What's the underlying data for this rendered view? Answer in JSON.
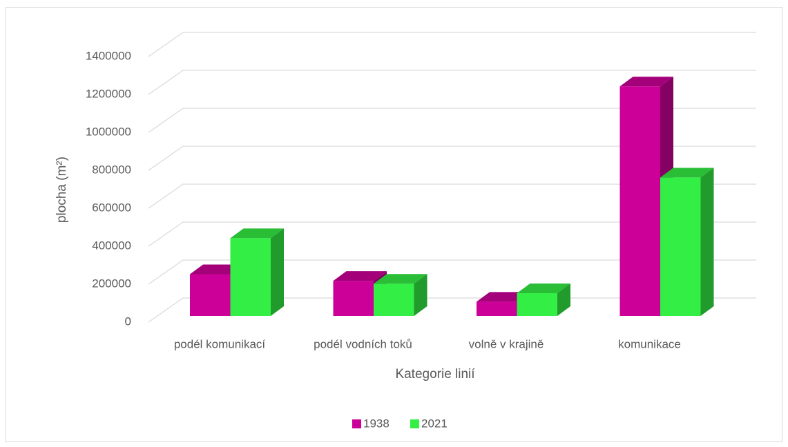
{
  "chart_data": {
    "type": "bar3d",
    "xlabel": "Kategorie linií",
    "ylabel": "plocha (m²)",
    "categories": [
      "podél komunikací",
      "podél vodních toků",
      "volně v krajině",
      "komunikace"
    ],
    "series": [
      {
        "name": "1938",
        "color": "#cc0099",
        "values": [
          220000,
          185000,
          75000,
          1210000
        ]
      },
      {
        "name": "2021",
        "color": "#33ee44",
        "values": [
          410000,
          170000,
          120000,
          730000
        ]
      }
    ],
    "ylim": [
      0,
      1400000
    ],
    "yticks": [
      0,
      200000,
      400000,
      600000,
      800000,
      1000000,
      1200000,
      1400000
    ],
    "grid": true,
    "legend": "bottom"
  }
}
